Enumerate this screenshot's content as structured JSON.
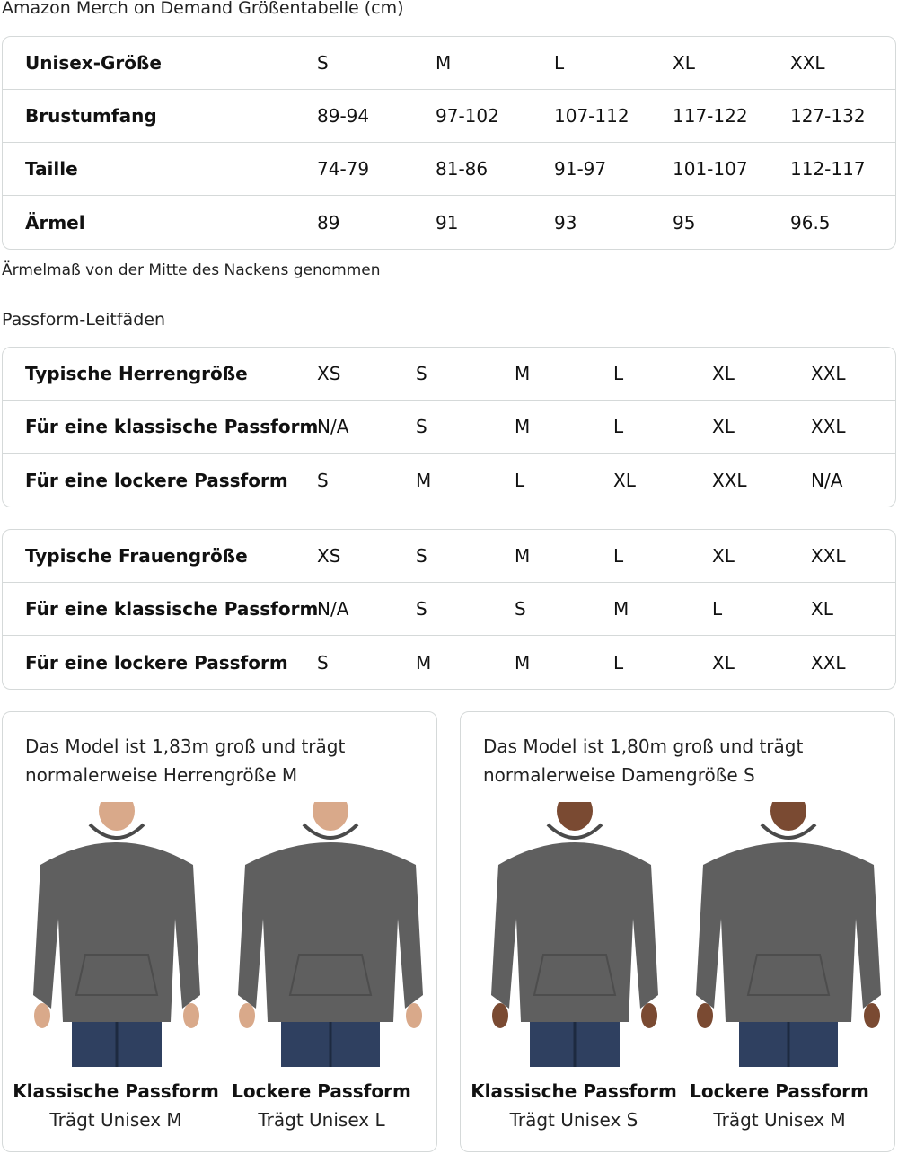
{
  "title": "Amazon Merch on Demand Größentabelle (cm)",
  "size_table": {
    "rows": [
      {
        "label": "Unisex-Größe",
        "values": [
          "S",
          "M",
          "L",
          "XL",
          "XXL"
        ]
      },
      {
        "label": "Brustumfang",
        "values": [
          "89-94",
          "97-102",
          "107-112",
          "117-122",
          "127-132"
        ]
      },
      {
        "label": "Taille",
        "values": [
          "74-79",
          "81-86",
          "91-97",
          "101-107",
          "112-117"
        ]
      },
      {
        "label": "Ärmel",
        "values": [
          "89",
          "91",
          "93",
          "95",
          "96.5"
        ]
      }
    ]
  },
  "sleeve_note": "Ärmelmaß von der Mitte des Nackens genommen",
  "fit_title": "Passform-Leitfäden",
  "men_fit": {
    "rows": [
      {
        "label": "Typische Herrengröße",
        "values": [
          "XS",
          "S",
          "M",
          "L",
          "XL",
          "XXL"
        ]
      },
      {
        "label": "Für eine klassische Passform",
        "values": [
          "N/A",
          "S",
          "M",
          "L",
          "XL",
          "XXL"
        ]
      },
      {
        "label": "Für eine lockere Passform",
        "values": [
          "S",
          "M",
          "L",
          "XL",
          "XXL",
          "N/A"
        ]
      }
    ]
  },
  "women_fit": {
    "rows": [
      {
        "label": "Typische Frauengröße",
        "values": [
          "XS",
          "S",
          "M",
          "L",
          "XL",
          "XXL"
        ]
      },
      {
        "label": "Für eine klassische Passform",
        "values": [
          "N/A",
          "S",
          "S",
          "M",
          "L",
          "XL"
        ]
      },
      {
        "label": "Für eine lockere Passform",
        "values": [
          "S",
          "M",
          "M",
          "L",
          "XL",
          "XXL"
        ]
      }
    ]
  },
  "cards": [
    {
      "desc1": "Das Model ist 1,83m groß und trägt",
      "desc2": "normalerweise Herrengröße M",
      "figures": [
        {
          "title": "Klassische Passform",
          "sub": "Trägt Unisex M"
        },
        {
          "title": "Lockere Passform",
          "sub": "Trägt Unisex L"
        }
      ]
    },
    {
      "desc1": "Das Model ist 1,80m groß und trägt",
      "desc2": "normalerweise Damengröße S",
      "figures": [
        {
          "title": "Klassische Passform",
          "sub": "Trägt Unisex S"
        },
        {
          "title": "Lockere Passform",
          "sub": "Trägt Unisex M"
        }
      ]
    }
  ],
  "colors": {
    "hoodie": "#5f5f5f",
    "jeans": "#2f4060",
    "border": "#d5d9d9"
  }
}
